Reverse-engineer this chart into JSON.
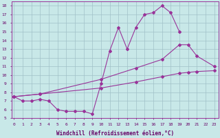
{
  "bg_color": "#c8e8e8",
  "grid_color": "#a0c0c8",
  "line_color": "#993399",
  "xlabel": "Windchill (Refroidissement éolien,°C)",
  "xlim_min": -0.3,
  "xlim_max": 23.5,
  "ylim_min": 5,
  "ylim_max": 18.5,
  "line1_x": [
    0,
    1,
    2,
    3,
    4,
    5,
    6,
    7,
    8,
    9,
    10,
    11,
    12,
    13,
    14,
    15,
    16,
    17,
    18,
    19
  ],
  "line1_y": [
    7.5,
    7.0,
    7.0,
    7.2,
    7.0,
    6.0,
    5.8,
    5.8,
    5.8,
    5.5,
    9.0,
    12.8,
    15.5,
    13.0,
    15.5,
    17.0,
    17.2,
    18.0,
    17.2,
    15.0
  ],
  "line2_x": [
    0,
    3,
    10,
    14,
    17,
    19,
    20,
    21,
    23
  ],
  "line2_y": [
    7.5,
    7.8,
    9.5,
    10.8,
    11.8,
    13.5,
    13.5,
    12.2,
    11.0
  ],
  "line3_x": [
    0,
    3,
    10,
    14,
    17,
    19,
    20,
    21,
    23
  ],
  "line3_y": [
    7.5,
    7.8,
    8.5,
    9.2,
    9.8,
    10.2,
    10.3,
    10.4,
    10.5
  ],
  "tick_fontsize": 4.5,
  "xlabel_fontsize": 5.5
}
